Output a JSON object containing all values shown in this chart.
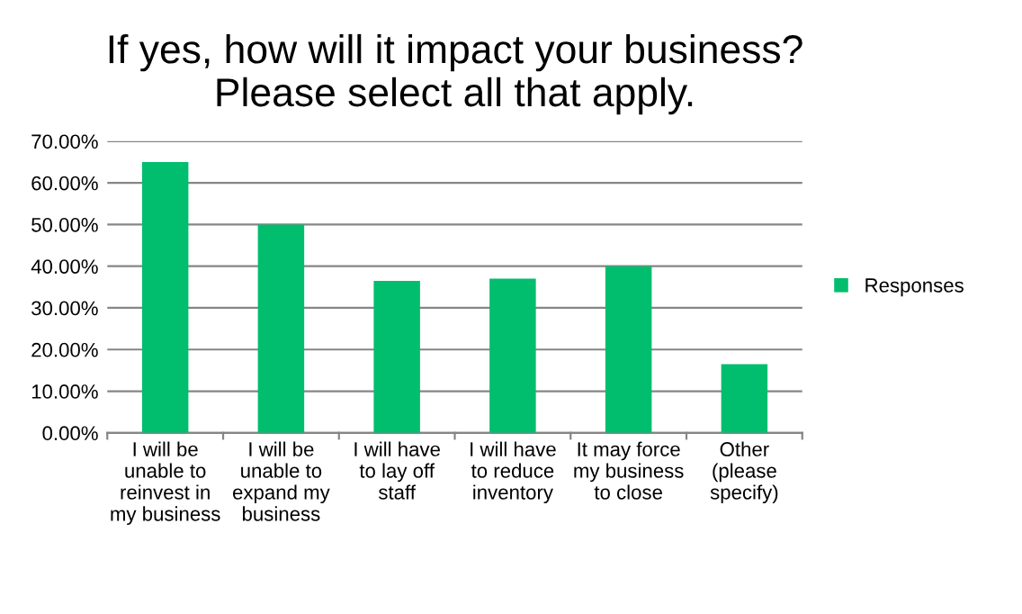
{
  "chart_data": {
    "type": "bar",
    "title": "If yes, how will it impact your business?\nPlease select all that apply.",
    "categories": [
      "I will be\nunable to\nreinvest in\nmy business",
      "I will be\nunable to\nexpand my\nbusiness",
      "I will have\nto lay off\nstaff",
      "I will have\nto reduce\ninventory",
      "It may force\nmy business\nto close",
      "Other\n(please\nspecify)"
    ],
    "series": [
      {
        "name": "Responses",
        "color": "#00be6e",
        "values": [
          65,
          50,
          36.5,
          37,
          40,
          16.5
        ]
      }
    ],
    "ylim": [
      0,
      70
    ],
    "yticks": [
      {
        "value": 0,
        "label": "0.00%"
      },
      {
        "value": 10,
        "label": "10.00%"
      },
      {
        "value": 20,
        "label": "20.00%"
      },
      {
        "value": 30,
        "label": "30.00%"
      },
      {
        "value": 40,
        "label": "40.00%"
      },
      {
        "value": 50,
        "label": "50.00%"
      },
      {
        "value": 60,
        "label": "60.00%"
      },
      {
        "value": 70,
        "label": "70.00%"
      }
    ],
    "grid": "y",
    "legend": "right"
  }
}
